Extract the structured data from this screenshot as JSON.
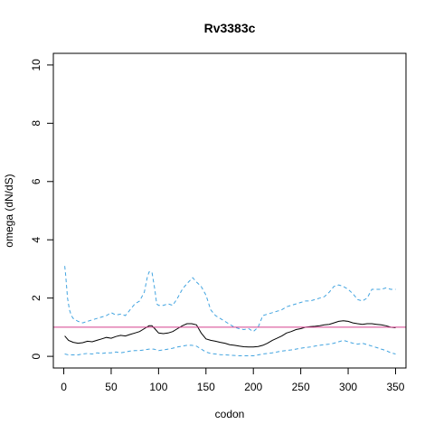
{
  "chart_data": {
    "type": "line",
    "title": "Rv3383c",
    "xlabel": "codon",
    "ylabel": "omega (dN/dS)",
    "xlim": [
      -11,
      361
    ],
    "ylim": [
      -0.4,
      10.4
    ],
    "x_ticks": [
      0,
      50,
      100,
      150,
      200,
      250,
      300,
      350
    ],
    "y_ticks": [
      0,
      2,
      4,
      6,
      8,
      10
    ],
    "grid": false,
    "reference_line": {
      "y": 1,
      "color": "#d43f8d"
    },
    "series": [
      {
        "style": "solid",
        "color": "#000000",
        "x": [
          1,
          5,
          10,
          15,
          20,
          25,
          30,
          35,
          40,
          45,
          50,
          55,
          60,
          65,
          70,
          75,
          80,
          85,
          90,
          93,
          96,
          100,
          105,
          110,
          115,
          120,
          125,
          130,
          135,
          140,
          145,
          150,
          155,
          160,
          165,
          170,
          175,
          180,
          185,
          190,
          195,
          200,
          205,
          210,
          215,
          220,
          225,
          230,
          235,
          240,
          245,
          250,
          255,
          260,
          265,
          270,
          275,
          280,
          285,
          290,
          295,
          300,
          305,
          310,
          315,
          320,
          325,
          330,
          335,
          340,
          345,
          350
        ],
        "y": [
          0.7,
          0.55,
          0.48,
          0.45,
          0.47,
          0.52,
          0.5,
          0.55,
          0.6,
          0.65,
          0.62,
          0.68,
          0.72,
          0.7,
          0.75,
          0.8,
          0.85,
          0.95,
          1.05,
          1.05,
          0.95,
          0.8,
          0.78,
          0.8,
          0.85,
          0.95,
          1.05,
          1.12,
          1.12,
          1.08,
          0.8,
          0.6,
          0.55,
          0.52,
          0.48,
          0.45,
          0.4,
          0.38,
          0.35,
          0.33,
          0.32,
          0.32,
          0.34,
          0.38,
          0.45,
          0.55,
          0.62,
          0.7,
          0.8,
          0.85,
          0.92,
          0.95,
          1.0,
          1.02,
          1.03,
          1.05,
          1.08,
          1.1,
          1.15,
          1.2,
          1.22,
          1.2,
          1.15,
          1.12,
          1.1,
          1.12,
          1.12,
          1.1,
          1.08,
          1.05,
          1.0,
          0.98
        ]
      },
      {
        "style": "dashed",
        "color": "#42a4e0",
        "x": [
          1,
          2,
          4,
          6,
          8,
          10,
          15,
          20,
          25,
          30,
          35,
          40,
          45,
          50,
          55,
          60,
          65,
          70,
          75,
          80,
          85,
          88,
          90,
          93,
          96,
          98,
          100,
          105,
          110,
          115,
          120,
          125,
          130,
          133,
          136,
          140,
          145,
          150,
          155,
          160,
          165,
          170,
          175,
          180,
          185,
          190,
          195,
          200,
          205,
          210,
          215,
          220,
          225,
          230,
          235,
          240,
          245,
          250,
          255,
          260,
          265,
          270,
          275,
          280,
          285,
          290,
          295,
          300,
          305,
          310,
          315,
          320,
          325,
          330,
          335,
          340,
          345,
          350
        ],
        "y": [
          3.1,
          2.8,
          2.0,
          1.6,
          1.4,
          1.3,
          1.2,
          1.15,
          1.2,
          1.25,
          1.3,
          1.35,
          1.4,
          1.5,
          1.42,
          1.45,
          1.4,
          1.6,
          1.8,
          1.9,
          2.2,
          2.7,
          2.9,
          2.9,
          2.3,
          1.8,
          1.75,
          1.75,
          1.8,
          1.75,
          2.0,
          2.3,
          2.5,
          2.6,
          2.7,
          2.55,
          2.4,
          2.1,
          1.6,
          1.4,
          1.3,
          1.2,
          1.1,
          1.0,
          0.95,
          0.92,
          0.95,
          0.85,
          1.0,
          1.4,
          1.45,
          1.5,
          1.55,
          1.6,
          1.7,
          1.75,
          1.8,
          1.85,
          1.9,
          1.9,
          1.95,
          2.0,
          2.05,
          2.2,
          2.4,
          2.45,
          2.4,
          2.3,
          2.15,
          1.95,
          1.9,
          2.0,
          2.3,
          2.3,
          2.3,
          2.35,
          2.3,
          2.3
        ]
      },
      {
        "style": "dashed",
        "color": "#42a4e0",
        "x": [
          1,
          5,
          10,
          15,
          20,
          25,
          30,
          35,
          40,
          45,
          50,
          55,
          60,
          65,
          70,
          75,
          80,
          85,
          90,
          95,
          100,
          105,
          110,
          115,
          120,
          125,
          130,
          135,
          140,
          145,
          150,
          155,
          160,
          165,
          170,
          175,
          180,
          185,
          190,
          195,
          200,
          205,
          210,
          215,
          220,
          225,
          230,
          235,
          240,
          245,
          250,
          255,
          260,
          265,
          270,
          275,
          280,
          285,
          290,
          295,
          300,
          305,
          310,
          315,
          320,
          325,
          330,
          335,
          340,
          345,
          350
        ],
        "y": [
          0.08,
          0.05,
          0.05,
          0.05,
          0.08,
          0.1,
          0.08,
          0.12,
          0.1,
          0.12,
          0.12,
          0.15,
          0.12,
          0.15,
          0.18,
          0.2,
          0.2,
          0.22,
          0.25,
          0.25,
          0.2,
          0.22,
          0.25,
          0.28,
          0.32,
          0.35,
          0.38,
          0.38,
          0.35,
          0.25,
          0.15,
          0.1,
          0.08,
          0.06,
          0.05,
          0.04,
          0.03,
          0.02,
          0.02,
          0.02,
          0.02,
          0.05,
          0.08,
          0.1,
          0.12,
          0.15,
          0.18,
          0.2,
          0.22,
          0.25,
          0.28,
          0.3,
          0.32,
          0.35,
          0.38,
          0.4,
          0.42,
          0.45,
          0.5,
          0.55,
          0.5,
          0.45,
          0.42,
          0.45,
          0.4,
          0.35,
          0.3,
          0.25,
          0.2,
          0.12,
          0.08
        ]
      }
    ]
  }
}
